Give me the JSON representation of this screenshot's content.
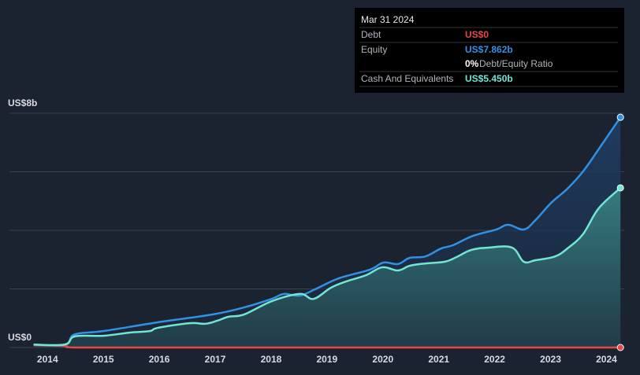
{
  "chart_data": {
    "type": "line",
    "xlim": [
      2013.15,
      2024.6
    ],
    "xticks": [
      2014,
      2015,
      2016,
      2017,
      2018,
      2019,
      2020,
      2021,
      2022,
      2023,
      2024
    ],
    "ylim": [
      0,
      8
    ],
    "yticks": [
      {
        "value": 0,
        "label": "US$0"
      },
      {
        "value": 8,
        "label": "US$8b"
      }
    ],
    "grid_lines": [
      0,
      2,
      4,
      6,
      8
    ],
    "series": [
      {
        "name": "Debt",
        "color": "#e8474a",
        "x": [
          2013.75,
          2014.31,
          2014.49,
          2016.0,
          2018.0,
          2020.0,
          2022.0,
          2024.25
        ],
        "values": [
          0.08,
          0.05,
          0,
          0,
          0,
          0,
          0,
          0
        ]
      },
      {
        "name": "Equity",
        "color": "#3391e3",
        "x": [
          2013.75,
          2014.31,
          2014.49,
          2015.0,
          2015.97,
          2016.96,
          2017.52,
          2018.01,
          2018.23,
          2018.51,
          2018.79,
          2019.21,
          2019.77,
          2020.01,
          2020.27,
          2020.48,
          2020.76,
          2021.04,
          2021.25,
          2021.61,
          2022.03,
          2022.24,
          2022.52,
          2022.73,
          2023.01,
          2023.3,
          2023.58,
          2023.86,
          2024.25
        ],
        "values": [
          0.1,
          0.1,
          0.45,
          0.56,
          0.86,
          1.13,
          1.37,
          1.66,
          1.83,
          1.77,
          1.99,
          2.36,
          2.66,
          2.9,
          2.85,
          3.06,
          3.11,
          3.38,
          3.49,
          3.81,
          4.03,
          4.19,
          4.03,
          4.35,
          4.94,
          5.42,
          6.01,
          6.77,
          7.862
        ]
      },
      {
        "name": "Cash And Equivalents",
        "color": "#72e5d4",
        "x": [
          2013.75,
          2014.31,
          2014.49,
          2015.0,
          2015.48,
          2015.83,
          2015.97,
          2016.54,
          2016.82,
          2017.03,
          2017.24,
          2017.52,
          2018.01,
          2018.51,
          2018.76,
          2019.07,
          2019.35,
          2019.7,
          2019.99,
          2020.27,
          2020.48,
          2020.76,
          2021.11,
          2021.32,
          2021.58,
          2021.89,
          2022.31,
          2022.52,
          2022.73,
          2023.08,
          2023.3,
          2023.58,
          2023.86,
          2024.25
        ],
        "values": [
          0.1,
          0.1,
          0.38,
          0.4,
          0.51,
          0.56,
          0.67,
          0.83,
          0.81,
          0.91,
          1.05,
          1.13,
          1.58,
          1.83,
          1.66,
          2.04,
          2.26,
          2.47,
          2.74,
          2.63,
          2.79,
          2.87,
          2.93,
          3.09,
          3.33,
          3.41,
          3.41,
          2.93,
          2.98,
          3.11,
          3.38,
          3.87,
          4.75,
          5.45
        ]
      }
    ],
    "tooltip": {
      "date": "Mar 31 2024",
      "labels": [
        "US$0",
        "US$7.862b",
        "US$5.450b"
      ],
      "ratio": "0%",
      "ratio_label": "Debt/Equity Ratio"
    }
  }
}
